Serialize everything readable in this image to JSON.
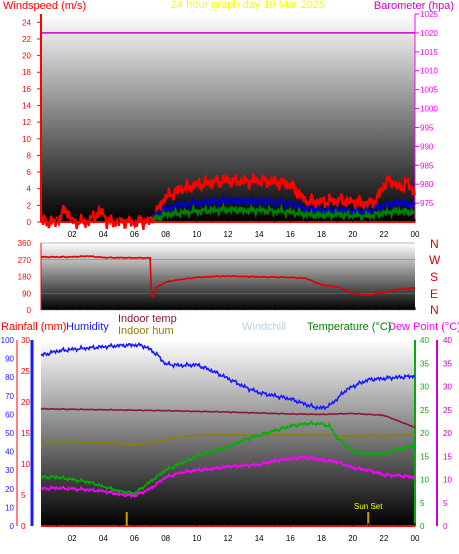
{
  "colors": {
    "wind": "#ff0000",
    "gust_blue": "#0000c0",
    "gust_green": "#008000",
    "barometer": "#d000d0",
    "direction": "#e00000",
    "humidity": "#1a1aff",
    "indoor_temp": "#8b1a3a",
    "indoor_hum": "#8b8000",
    "windchill": "#b8d0e8",
    "temperature": "#00b000",
    "dew_point": "#ff00ff",
    "rain": "#ff0000",
    "sunset": "#c8a000",
    "axis_left": "#ff0000",
    "axis_right_top": "#ff00ff"
  },
  "chart_data": [
    {
      "type": "line",
      "title": "24 hour graph day 10 Mar 2025",
      "ylabel_left": "Windspeed (m/s)",
      "ylabel_right": "Barometer (hpa)",
      "ylim_left": [
        0,
        25
      ],
      "ylim_right": [
        970,
        1025
      ],
      "yticks_left": [
        "0",
        "2",
        "4",
        "6",
        "8",
        "10",
        "12",
        "14",
        "16",
        "18",
        "20",
        "22",
        "24"
      ],
      "yticks_right": [
        "975",
        "980",
        "985",
        "990",
        "995",
        "1000",
        "1005",
        "1010",
        "1015",
        "1020",
        "1025"
      ],
      "x_ticks": [
        "02",
        "04",
        "06",
        "08",
        "10",
        "12",
        "14",
        "16",
        "18",
        "20",
        "22",
        "00"
      ],
      "xlim": [
        0,
        24
      ],
      "series": [
        {
          "name": "wind gust",
          "color": "wind",
          "x": [
            0,
            1,
            1.6,
            2,
            3,
            3.6,
            4,
            4.2,
            5,
            6,
            7,
            7.2,
            8,
            9,
            10,
            11,
            12,
            13,
            14,
            15,
            16,
            16.5,
            17,
            18,
            19,
            20,
            21,
            21.5,
            22,
            22.5,
            23,
            23.5,
            24
          ],
          "values": [
            0,
            0,
            1.6,
            0,
            0,
            1,
            1.2,
            0,
            0,
            0,
            0,
            0.5,
            3,
            4,
            4.5,
            4.8,
            5,
            4.9,
            5,
            4.8,
            4.5,
            3.5,
            2.5,
            2.4,
            2.6,
            2.4,
            2.2,
            2.5,
            4.5,
            5,
            4,
            4.8,
            3.5
          ]
        },
        {
          "name": "wind avg",
          "color": "gust_blue",
          "x": [
            7.2,
            8,
            9,
            10,
            11,
            12,
            13,
            14,
            15,
            16,
            17,
            18,
            19,
            20,
            21,
            22,
            23,
            24
          ],
          "values": [
            0.5,
            1.6,
            2,
            2.3,
            2.4,
            2.6,
            2.5,
            2.5,
            2.4,
            2.2,
            1.6,
            1.3,
            1.4,
            1.3,
            1.2,
            2,
            2.3,
            2
          ]
        },
        {
          "name": "wind min",
          "color": "gust_green",
          "x": [
            7.2,
            8,
            9,
            10,
            11,
            12,
            13,
            14,
            15,
            16,
            17,
            18,
            19,
            20,
            21,
            22,
            23,
            24
          ],
          "values": [
            0.3,
            0.9,
            1.1,
            1.3,
            1.4,
            1.5,
            1.4,
            1.4,
            1.3,
            1.2,
            0.9,
            0.8,
            0.9,
            0.8,
            0.7,
            1.1,
            1.3,
            1.1
          ]
        },
        {
          "name": "barometer",
          "color": "barometer",
          "x": [
            0,
            24
          ],
          "values": [
            1020,
            1020
          ]
        }
      ]
    },
    {
      "type": "line",
      "ylabel_right": [
        "N",
        "W",
        "S",
        "E",
        "N"
      ],
      "ylim": [
        0,
        360
      ],
      "yticks": [
        "0",
        "90",
        "180",
        "270",
        "360"
      ],
      "xlim": [
        0,
        24
      ],
      "series": [
        {
          "name": "wind direction",
          "color": "direction",
          "x": [
            0,
            2,
            3,
            4,
            6,
            7,
            7.1,
            7.4,
            8,
            9,
            10,
            11,
            12,
            14,
            16,
            17,
            18,
            19,
            20,
            21,
            22,
            23,
            24
          ],
          "values": [
            285,
            285,
            290,
            282,
            280,
            280,
            60,
            120,
            150,
            165,
            175,
            180,
            182,
            178,
            175,
            170,
            135,
            125,
            90,
            80,
            95,
            110,
            120
          ]
        }
      ]
    },
    {
      "type": "line",
      "legend": [
        "Rainfall (mm)",
        "Humidity",
        "Indoor temp",
        "Indoor hum",
        "Windchill",
        "Temperature (°C)",
        "Dew Point (°C)"
      ],
      "axis_rain": [
        "0",
        "10",
        "20",
        "30",
        "40",
        "50",
        "60",
        "70",
        "80",
        "90",
        "100"
      ],
      "axis_hum": [
        "0",
        "5",
        "10",
        "15",
        "20",
        "25",
        "30"
      ],
      "axis_temp": [
        "0",
        "5",
        "10",
        "15",
        "20",
        "25",
        "30",
        "35",
        "40"
      ],
      "axis_dew": [
        "0",
        "5",
        "10",
        "15",
        "20",
        "25",
        "30",
        "35",
        "40"
      ],
      "ylim_hum": [
        0,
        30
      ],
      "ylim_temp": [
        0,
        40
      ],
      "xlim": [
        0,
        24
      ],
      "sunset_label": "Sun Set",
      "sunset_x": 21,
      "rain_marker_x": 5.5,
      "series": [
        {
          "name": "Humidity",
          "color": "humidity",
          "x": [
            0,
            1,
            2,
            3,
            4,
            5,
            6,
            6.5,
            7,
            7.5,
            8,
            9,
            10,
            11,
            12,
            13,
            14,
            15,
            16,
            17,
            17.5,
            18,
            18.5,
            19,
            19.5,
            20,
            21,
            22,
            23,
            24
          ],
          "values": [
            27.5,
            28.2,
            28.5,
            28.7,
            28.9,
            29.1,
            29.2,
            29.1,
            28.5,
            27.5,
            26.1,
            25.9,
            26.0,
            25.0,
            23.8,
            22.5,
            21.5,
            21.0,
            20.5,
            19.6,
            19.2,
            19.0,
            19.4,
            20.5,
            21.8,
            22.5,
            23.6,
            23.8,
            24.0,
            24.2
          ]
        },
        {
          "name": "Indoor temp",
          "color": "indoor_temp",
          "x": [
            0,
            4,
            8,
            12,
            14,
            16,
            18,
            20,
            22,
            23,
            24
          ],
          "values": [
            25.2,
            25.0,
            24.8,
            24.5,
            24.3,
            24.1,
            24.0,
            24.2,
            23.8,
            22.5,
            21.2
          ]
        },
        {
          "name": "Indoor hum",
          "color": "indoor_hum",
          "x": [
            0,
            4,
            6,
            7,
            8,
            9,
            10,
            12,
            14,
            16,
            18,
            20,
            21,
            22,
            24
          ],
          "values": [
            18.2,
            18.0,
            17.5,
            17.8,
            18.5,
            19.2,
            19.5,
            19.6,
            19.5,
            19.6,
            19.5,
            19.3,
            19.5,
            19.4,
            19.6
          ]
        },
        {
          "name": "Temperature (°C)",
          "color": "temperature",
          "x": [
            0,
            1,
            2,
            3,
            4,
            5,
            6,
            7,
            8,
            9,
            10,
            11,
            12,
            13,
            14,
            15,
            16,
            17,
            18,
            18.5,
            19,
            20,
            21,
            22,
            23,
            24
          ],
          "values": [
            10.5,
            10.5,
            10.0,
            9.5,
            8.5,
            7.5,
            7.0,
            9.5,
            12.0,
            13.5,
            15.0,
            16.0,
            17.0,
            18.5,
            19.5,
            20.5,
            21.5,
            22.0,
            22.0,
            21.5,
            19.0,
            16.0,
            15.5,
            15.5,
            16.5,
            17.5
          ]
        },
        {
          "name": "Dew Point (°C)",
          "color": "dew_point",
          "x": [
            0,
            1,
            2,
            3,
            4,
            5,
            6,
            7,
            8,
            9,
            10,
            11,
            12,
            13,
            14,
            15,
            16,
            17,
            18,
            19,
            20,
            21,
            22,
            23,
            24
          ],
          "values": [
            8.0,
            8.2,
            8.0,
            7.8,
            7.5,
            6.8,
            6.5,
            8.0,
            10.5,
            11.5,
            12.0,
            12.3,
            12.8,
            13.0,
            13.2,
            14.0,
            14.5,
            14.8,
            14.2,
            13.8,
            12.5,
            12.0,
            11.0,
            10.8,
            10.5
          ]
        }
      ]
    }
  ]
}
